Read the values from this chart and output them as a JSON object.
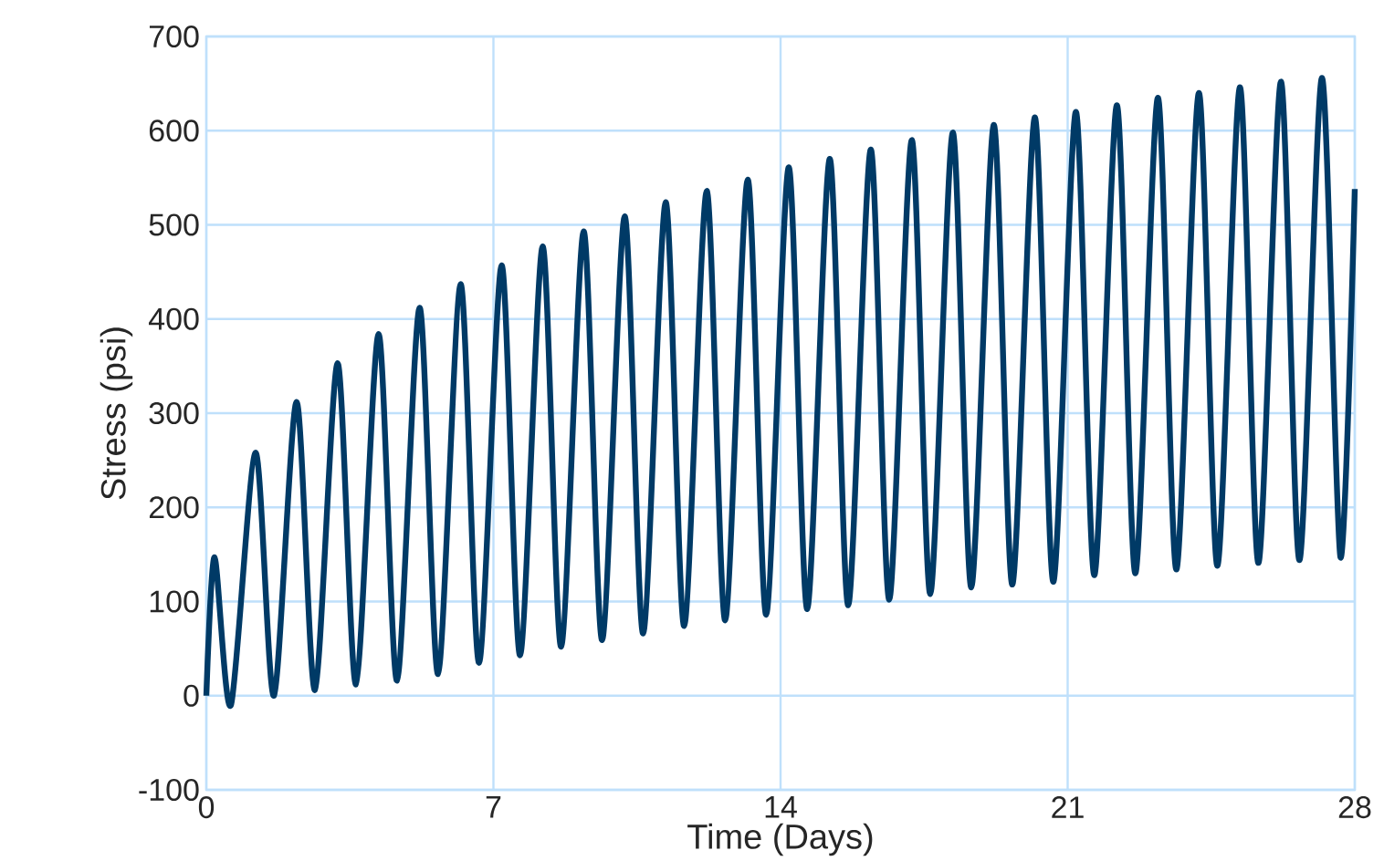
{
  "chart_data": {
    "type": "line",
    "xlabel": "Time (Days)",
    "ylabel": "Stress (psi)",
    "x": [
      0,
      0.2,
      0.6,
      1.2,
      1.65,
      2.2,
      2.65,
      3.2,
      3.65,
      4.2,
      4.65,
      5.2,
      5.65,
      6.2,
      6.65,
      7.2,
      7.65,
      8.2,
      8.65,
      9.2,
      9.65,
      10.2,
      10.65,
      11.2,
      11.65,
      12.2,
      12.65,
      13.2,
      13.65,
      14.2,
      14.65,
      15.2,
      15.65,
      16.2,
      16.65,
      17.2,
      17.65,
      18.2,
      18.65,
      19.2,
      19.65,
      20.2,
      20.65,
      21.2,
      21.65,
      22.2,
      22.65,
      23.2,
      23.65,
      24.2,
      24.65,
      25.2,
      25.65,
      26.2,
      26.65,
      27.2,
      27.65,
      28
    ],
    "series": [
      {
        "color": "#003a66",
        "values": [
          0,
          147,
          -10,
          258,
          0,
          312,
          6,
          353,
          12,
          384,
          16,
          412,
          23,
          437,
          35,
          457,
          43,
          477,
          52,
          493,
          59,
          509,
          66,
          524,
          74,
          536,
          80,
          548,
          86,
          561,
          92,
          570,
          96,
          580,
          102,
          590,
          108,
          598,
          115,
          606,
          118,
          614,
          121,
          620,
          128,
          627,
          130,
          635,
          134,
          640,
          138,
          646,
          141,
          652,
          144,
          656,
          147,
          538
        ]
      }
    ],
    "xlim": [
      0,
      28
    ],
    "ylim": [
      -100,
      700
    ],
    "xticks": [
      0,
      7,
      14,
      21,
      28
    ],
    "yticks": [
      -100,
      0,
      100,
      200,
      300,
      400,
      500,
      600,
      700
    ],
    "grid": true
  }
}
